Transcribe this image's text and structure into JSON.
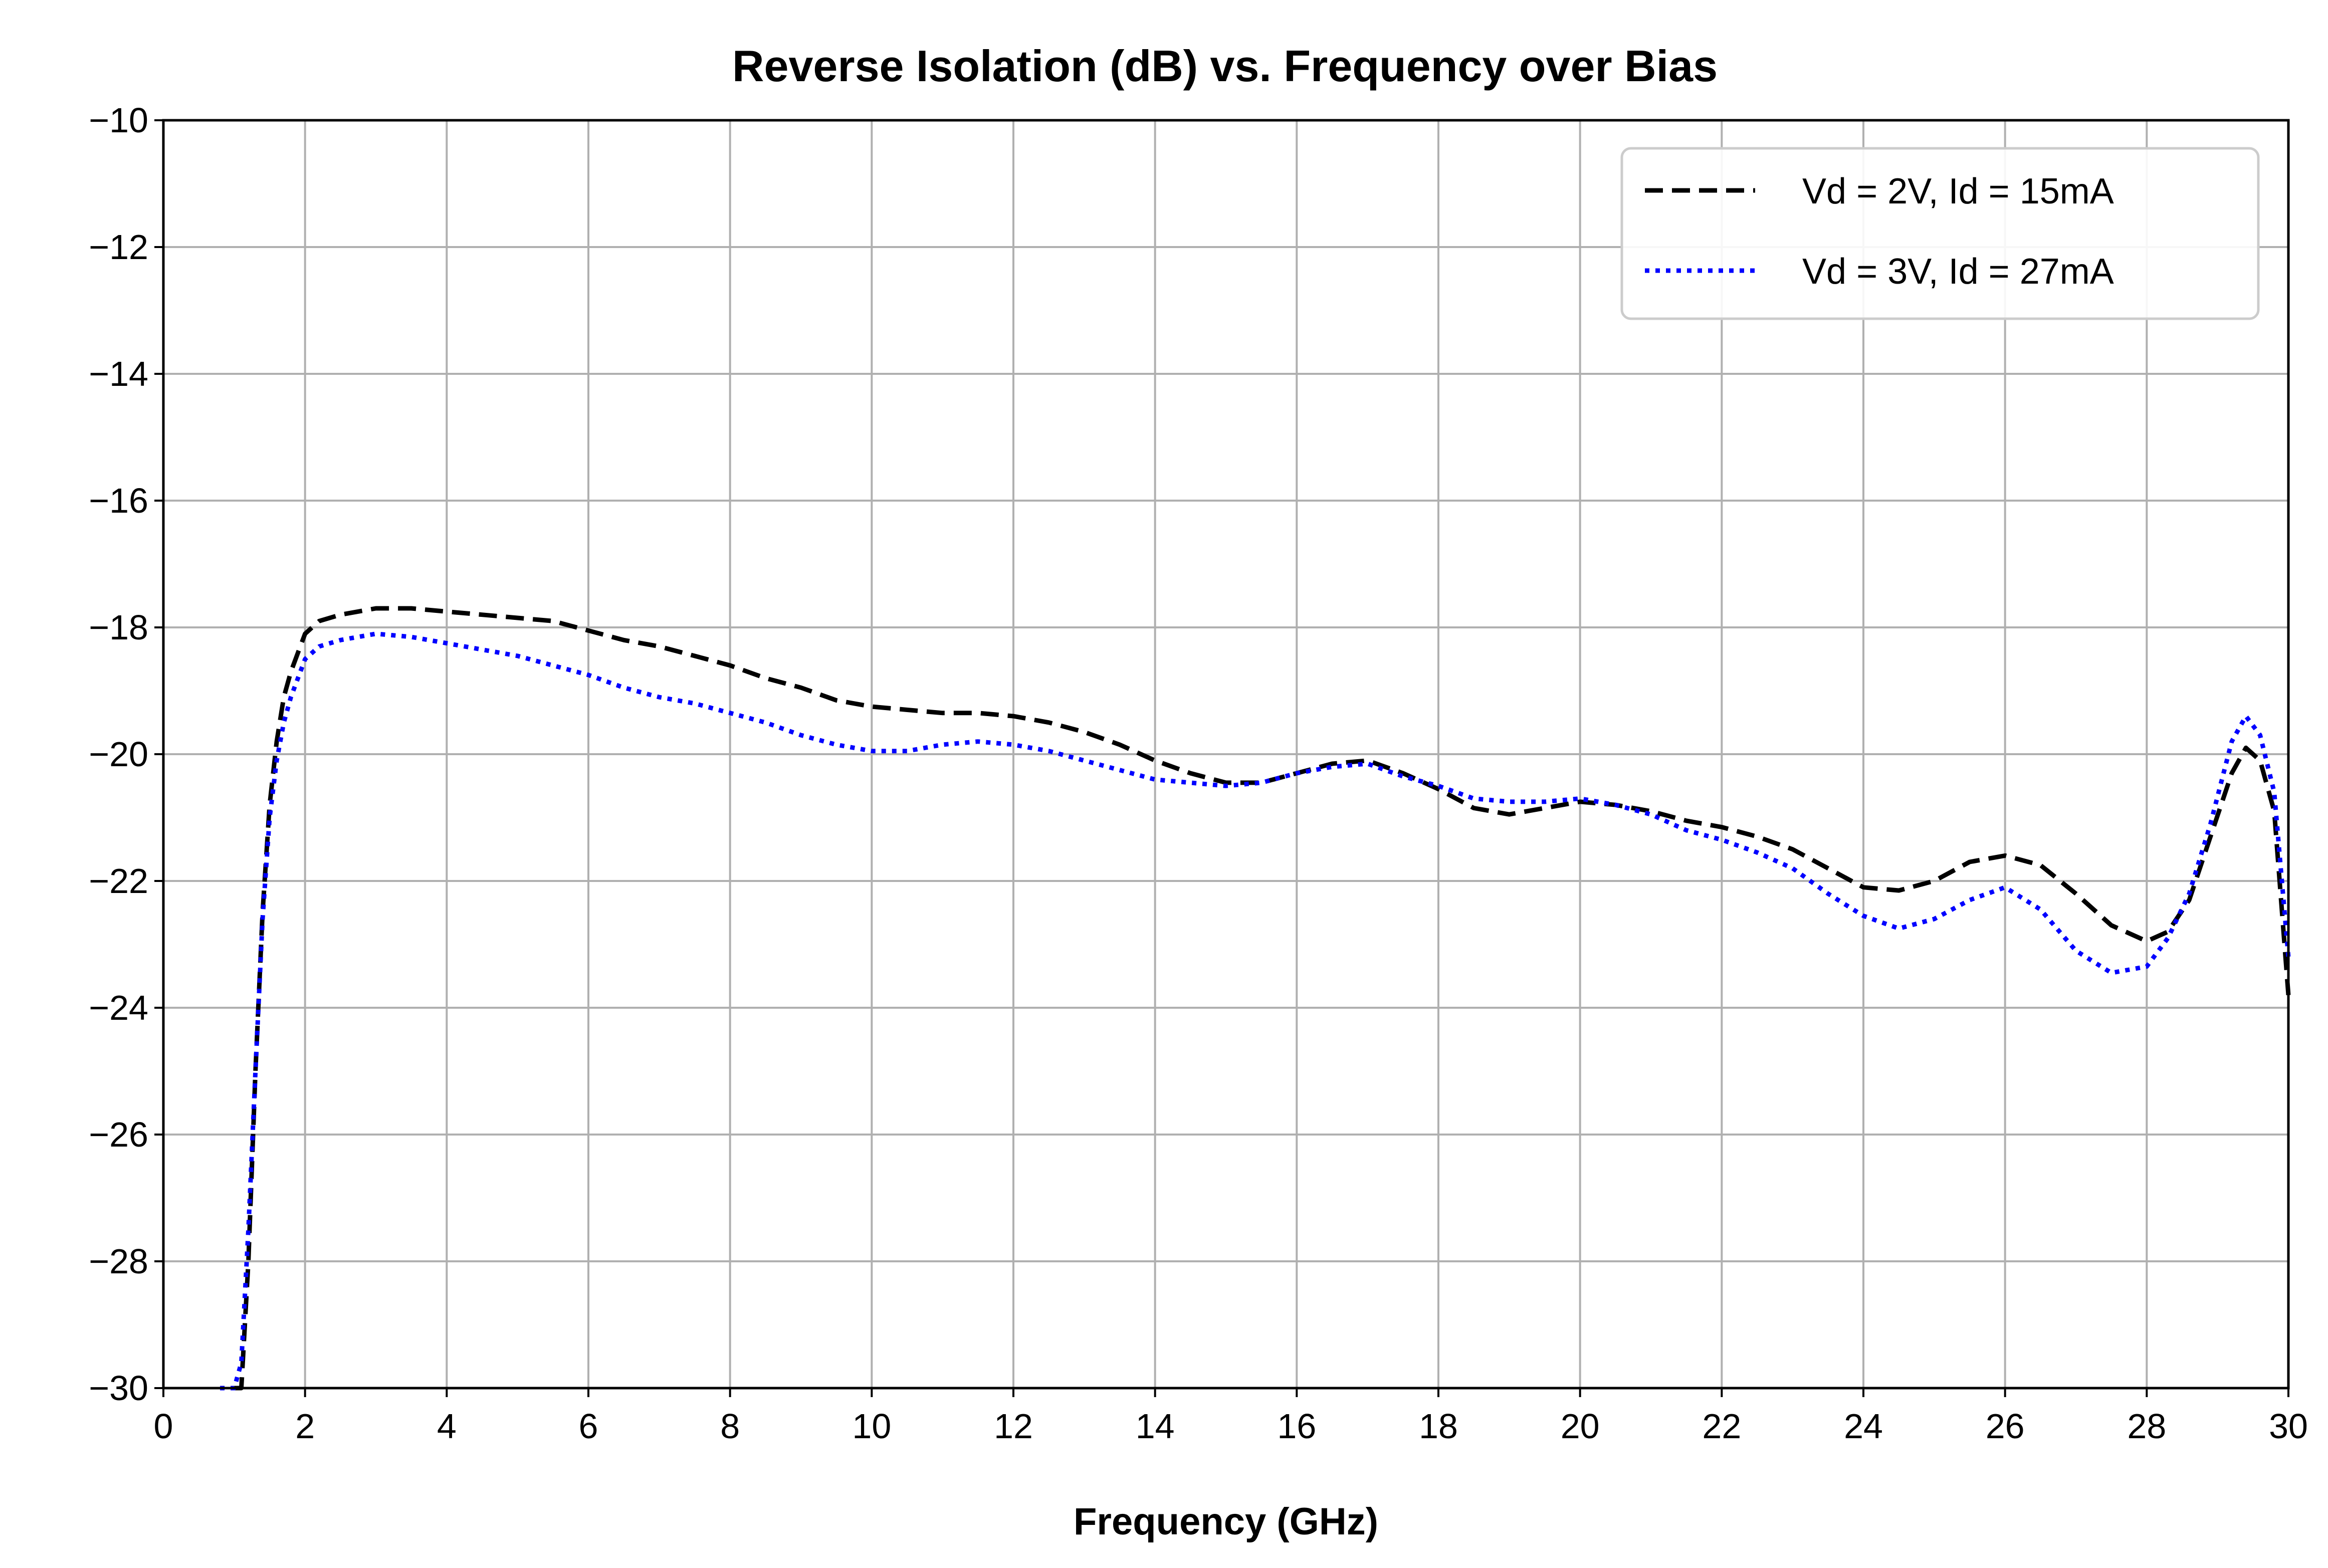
{
  "chart_data": {
    "type": "line",
    "title": "Reverse Isolation (dB) vs. Frequency over Bias",
    "xlabel": "Frequency (GHz)",
    "ylabel": "",
    "xlim": [
      0,
      30
    ],
    "ylim": [
      -30,
      -10
    ],
    "xticks": [
      "0",
      "2",
      "4",
      "6",
      "8",
      "10",
      "12",
      "14",
      "16",
      "18",
      "20",
      "22",
      "24",
      "26",
      "28",
      "30"
    ],
    "yticks": [
      "−30",
      "−28",
      "−26",
      "−24",
      "−22",
      "−20",
      "−18",
      "−16",
      "−14",
      "−12",
      "−10"
    ],
    "grid": true,
    "legend_position": "top-right",
    "series": [
      {
        "name": "Vd = 2V, Id = 15mA",
        "color": "#000000",
        "dash": "dashed",
        "points": [
          [
            1.0,
            -30
          ],
          [
            1.1,
            -30
          ],
          [
            1.2,
            -28
          ],
          [
            1.3,
            -25
          ],
          [
            1.4,
            -22.5
          ],
          [
            1.5,
            -20.8
          ],
          [
            1.6,
            -19.8
          ],
          [
            1.7,
            -19.1
          ],
          [
            1.8,
            -18.7
          ],
          [
            1.9,
            -18.4
          ],
          [
            2.0,
            -18.1
          ],
          [
            2.2,
            -17.9
          ],
          [
            2.5,
            -17.8
          ],
          [
            3.0,
            -17.7
          ],
          [
            3.5,
            -17.7
          ],
          [
            4.0,
            -17.75
          ],
          [
            4.5,
            -17.8
          ],
          [
            5.0,
            -17.85
          ],
          [
            5.5,
            -17.9
          ],
          [
            6.0,
            -18.05
          ],
          [
            6.5,
            -18.2
          ],
          [
            7.0,
            -18.3
          ],
          [
            7.5,
            -18.45
          ],
          [
            8.0,
            -18.6
          ],
          [
            8.5,
            -18.8
          ],
          [
            9.0,
            -18.95
          ],
          [
            9.5,
            -19.15
          ],
          [
            10.0,
            -19.25
          ],
          [
            10.5,
            -19.3
          ],
          [
            11.0,
            -19.35
          ],
          [
            11.5,
            -19.35
          ],
          [
            12.0,
            -19.4
          ],
          [
            12.5,
            -19.5
          ],
          [
            13.0,
            -19.65
          ],
          [
            13.5,
            -19.85
          ],
          [
            14.0,
            -20.1
          ],
          [
            14.5,
            -20.3
          ],
          [
            15.0,
            -20.45
          ],
          [
            15.5,
            -20.45
          ],
          [
            16.0,
            -20.3
          ],
          [
            16.5,
            -20.15
          ],
          [
            17.0,
            -20.1
          ],
          [
            17.5,
            -20.3
          ],
          [
            18.0,
            -20.55
          ],
          [
            18.5,
            -20.85
          ],
          [
            19.0,
            -20.95
          ],
          [
            19.5,
            -20.85
          ],
          [
            20.0,
            -20.75
          ],
          [
            20.5,
            -20.8
          ],
          [
            21.0,
            -20.9
          ],
          [
            21.5,
            -21.05
          ],
          [
            22.0,
            -21.15
          ],
          [
            22.5,
            -21.3
          ],
          [
            23.0,
            -21.5
          ],
          [
            23.5,
            -21.8
          ],
          [
            24.0,
            -22.1
          ],
          [
            24.5,
            -22.15
          ],
          [
            25.0,
            -22.0
          ],
          [
            25.5,
            -21.7
          ],
          [
            26.0,
            -21.6
          ],
          [
            26.5,
            -21.75
          ],
          [
            27.0,
            -22.2
          ],
          [
            27.5,
            -22.7
          ],
          [
            28.0,
            -22.95
          ],
          [
            28.3,
            -22.8
          ],
          [
            28.6,
            -22.3
          ],
          [
            28.9,
            -21.3
          ],
          [
            29.2,
            -20.3
          ],
          [
            29.4,
            -19.9
          ],
          [
            29.6,
            -20.1
          ],
          [
            29.8,
            -20.9
          ],
          [
            30.0,
            -23.8
          ]
        ]
      },
      {
        "name": "Vd = 3V, Id = 27mA",
        "color": "#0000ff",
        "dash": "dotted",
        "points": [
          [
            0.8,
            -30
          ],
          [
            1.0,
            -30
          ],
          [
            1.1,
            -29.6
          ],
          [
            1.2,
            -27.5
          ],
          [
            1.3,
            -25
          ],
          [
            1.4,
            -22.6
          ],
          [
            1.5,
            -21
          ],
          [
            1.6,
            -20.1
          ],
          [
            1.7,
            -19.5
          ],
          [
            1.8,
            -19.1
          ],
          [
            1.9,
            -18.8
          ],
          [
            2.0,
            -18.5
          ],
          [
            2.2,
            -18.3
          ],
          [
            2.5,
            -18.2
          ],
          [
            3.0,
            -18.1
          ],
          [
            3.5,
            -18.15
          ],
          [
            4.0,
            -18.25
          ],
          [
            4.5,
            -18.35
          ],
          [
            5.0,
            -18.45
          ],
          [
            5.5,
            -18.6
          ],
          [
            6.0,
            -18.75
          ],
          [
            6.5,
            -18.95
          ],
          [
            7.0,
            -19.1
          ],
          [
            7.5,
            -19.2
          ],
          [
            8.0,
            -19.35
          ],
          [
            8.5,
            -19.5
          ],
          [
            9.0,
            -19.7
          ],
          [
            9.5,
            -19.85
          ],
          [
            10.0,
            -19.95
          ],
          [
            10.5,
            -19.95
          ],
          [
            11.0,
            -19.85
          ],
          [
            11.5,
            -19.8
          ],
          [
            12.0,
            -19.85
          ],
          [
            12.5,
            -19.95
          ],
          [
            13.0,
            -20.1
          ],
          [
            13.5,
            -20.25
          ],
          [
            14.0,
            -20.4
          ],
          [
            14.5,
            -20.45
          ],
          [
            15.0,
            -20.5
          ],
          [
            15.5,
            -20.45
          ],
          [
            16.0,
            -20.3
          ],
          [
            16.5,
            -20.2
          ],
          [
            17.0,
            -20.15
          ],
          [
            17.5,
            -20.35
          ],
          [
            18.0,
            -20.5
          ],
          [
            18.5,
            -20.7
          ],
          [
            19.0,
            -20.75
          ],
          [
            19.5,
            -20.75
          ],
          [
            20.0,
            -20.7
          ],
          [
            20.5,
            -20.8
          ],
          [
            21.0,
            -20.95
          ],
          [
            21.5,
            -21.2
          ],
          [
            22.0,
            -21.35
          ],
          [
            22.5,
            -21.55
          ],
          [
            23.0,
            -21.8
          ],
          [
            23.5,
            -22.2
          ],
          [
            24.0,
            -22.55
          ],
          [
            24.5,
            -22.75
          ],
          [
            25.0,
            -22.6
          ],
          [
            25.5,
            -22.3
          ],
          [
            26.0,
            -22.1
          ],
          [
            26.5,
            -22.45
          ],
          [
            27.0,
            -23.1
          ],
          [
            27.5,
            -23.45
          ],
          [
            28.0,
            -23.35
          ],
          [
            28.3,
            -22.9
          ],
          [
            28.6,
            -22.2
          ],
          [
            28.9,
            -21.1
          ],
          [
            29.2,
            -19.8
          ],
          [
            29.4,
            -19.4
          ],
          [
            29.6,
            -19.7
          ],
          [
            29.8,
            -20.6
          ],
          [
            30.0,
            -23.2
          ]
        ]
      }
    ]
  }
}
